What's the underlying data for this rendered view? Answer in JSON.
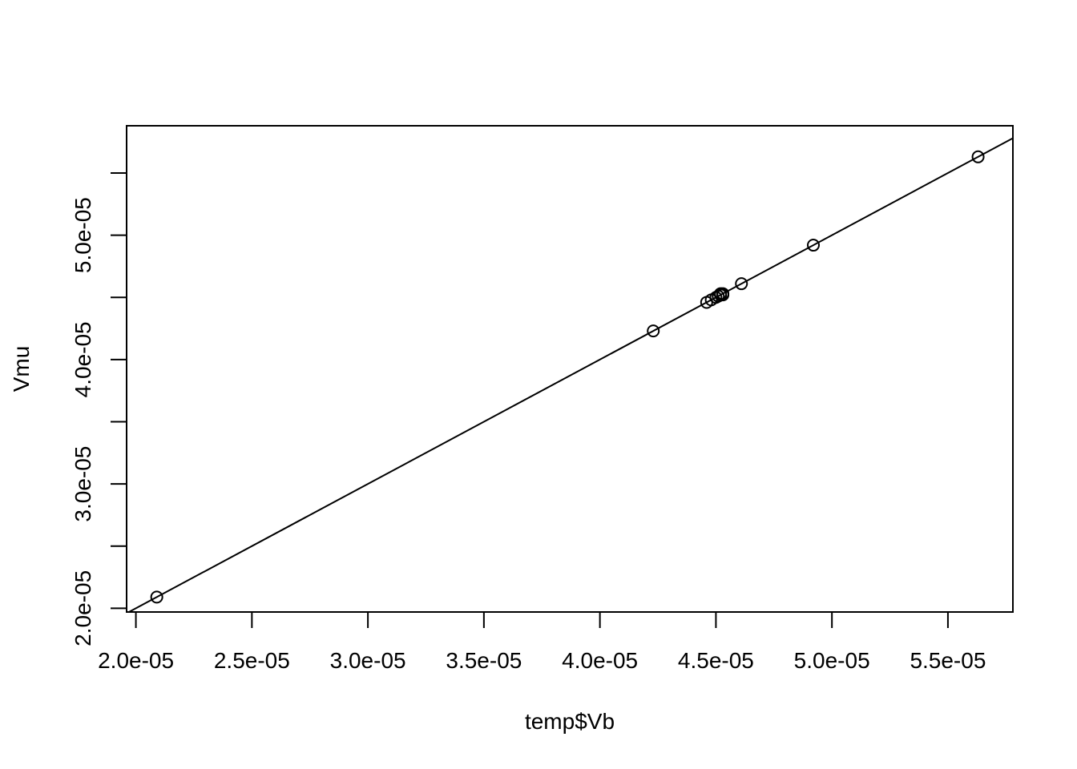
{
  "chart_data": {
    "type": "scatter",
    "title": "",
    "xlabel": "temp$Vb",
    "ylabel": "Vmu",
    "xlim": [
      1.96e-05,
      5.78e-05
    ],
    "ylim": [
      1.97e-05,
      5.88e-05
    ],
    "x_ticks": [
      2e-05,
      2.5e-05,
      3e-05,
      3.5e-05,
      4e-05,
      4.5e-05,
      5e-05,
      5.5e-05
    ],
    "x_tick_labels": [
      "2.0e-05",
      "2.5e-05",
      "3.0e-05",
      "3.5e-05",
      "4.0e-05",
      "4.5e-05",
      "5.0e-05",
      "5.5e-05"
    ],
    "y_ticks": [
      2e-05,
      2.5e-05,
      3e-05,
      3.5e-05,
      4e-05,
      4.5e-05,
      5e-05,
      5.5e-05
    ],
    "y_tick_labels": [
      "2.0e-05",
      "",
      "3.0e-05",
      "",
      "4.0e-05",
      "",
      "5.0e-05",
      ""
    ],
    "grid": false,
    "legend": "none",
    "reference_line": {
      "type": "abline",
      "intercept": 0,
      "slope": 1
    },
    "points": [
      {
        "x": 2.09e-05,
        "y": 2.09e-05
      },
      {
        "x": 4.23e-05,
        "y": 4.23e-05
      },
      {
        "x": 4.46e-05,
        "y": 4.46e-05
      },
      {
        "x": 4.48e-05,
        "y": 4.48e-05
      },
      {
        "x": 4.5e-05,
        "y": 4.5e-05
      },
      {
        "x": 4.51e-05,
        "y": 4.51e-05
      },
      {
        "x": 4.52e-05,
        "y": 4.52e-05
      },
      {
        "x": 4.52e-05,
        "y": 4.53e-05
      },
      {
        "x": 4.53e-05,
        "y": 4.52e-05
      },
      {
        "x": 4.53e-05,
        "y": 4.53e-05
      },
      {
        "x": 4.61e-05,
        "y": 4.61e-05
      },
      {
        "x": 4.92e-05,
        "y": 4.92e-05
      },
      {
        "x": 5.63e-05,
        "y": 5.63e-05
      }
    ],
    "colors": {
      "points": "#000000",
      "line": "#000000",
      "axes": "#000000"
    }
  }
}
